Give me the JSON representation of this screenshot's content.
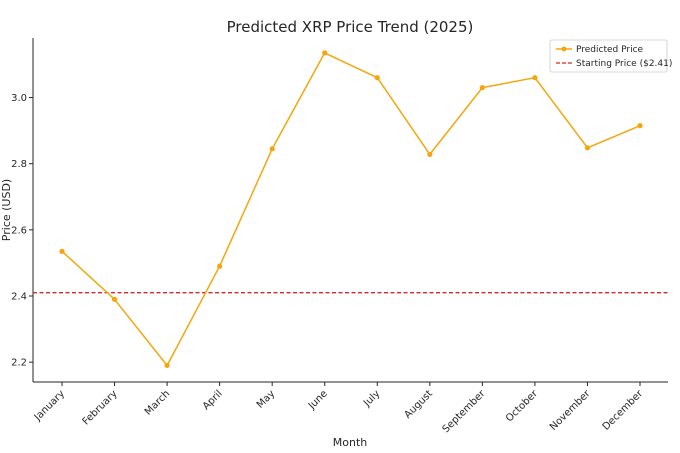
{
  "chart_data": {
    "type": "line",
    "title": "Predicted XRP Price Trend (2025)",
    "xlabel": "Month",
    "ylabel": "Price (USD)",
    "categories": [
      "January",
      "February",
      "March",
      "April",
      "May",
      "June",
      "July",
      "August",
      "September",
      "October",
      "November",
      "December"
    ],
    "series": [
      {
        "name": "Predicted Price",
        "color": "#f5a60c",
        "marker": "circle",
        "values": [
          2.535,
          2.39,
          2.19,
          2.49,
          2.845,
          3.135,
          3.06,
          2.828,
          3.03,
          3.06,
          2.848,
          2.915
        ]
      }
    ],
    "reference_lines": [
      {
        "name": "Starting Price ($2.41)",
        "value": 2.41,
        "color": "#d62728",
        "style": "dashed"
      }
    ],
    "yticks": [
      "2.2",
      "2.4",
      "2.6",
      "2.8",
      "3.0"
    ],
    "ytick_values": [
      2.2,
      2.4,
      2.6,
      2.8,
      3.0
    ],
    "ylim": [
      2.14,
      3.18
    ],
    "grid": false,
    "legend_position": "top-right"
  }
}
